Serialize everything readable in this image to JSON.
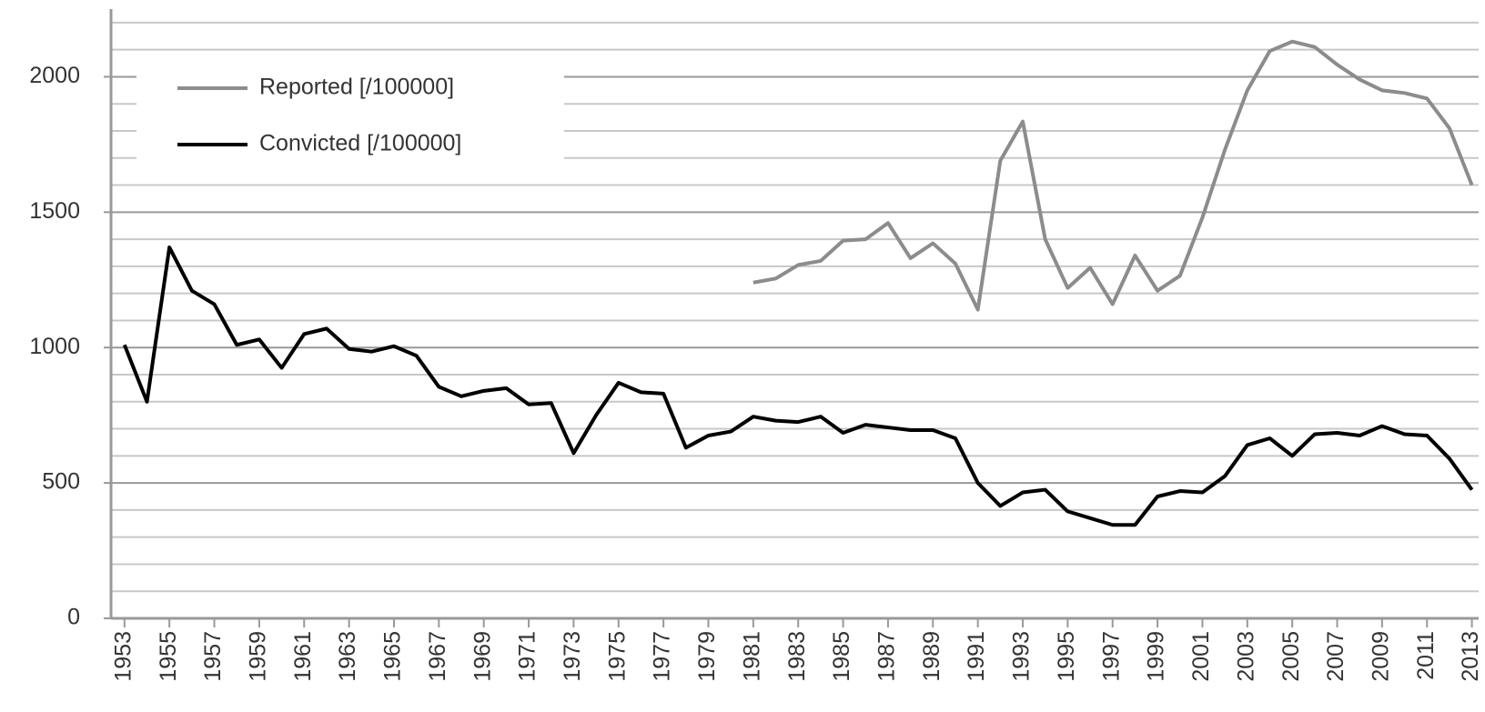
{
  "chart_data": {
    "type": "line",
    "x": [
      1953,
      1954,
      1955,
      1956,
      1957,
      1958,
      1959,
      1960,
      1961,
      1962,
      1963,
      1964,
      1965,
      1966,
      1967,
      1968,
      1969,
      1970,
      1971,
      1972,
      1973,
      1974,
      1975,
      1976,
      1977,
      1978,
      1979,
      1980,
      1981,
      1982,
      1983,
      1984,
      1985,
      1986,
      1987,
      1988,
      1989,
      1990,
      1991,
      1992,
      1993,
      1994,
      1995,
      1996,
      1997,
      1998,
      1999,
      2000,
      2001,
      2002,
      2003,
      2004,
      2005,
      2006,
      2007,
      2008,
      2009,
      2010,
      2011,
      2012,
      2013
    ],
    "xlim": [
      1952.4,
      2013.3
    ],
    "xticks": [
      1953,
      1955,
      1957,
      1959,
      1961,
      1963,
      1965,
      1967,
      1969,
      1971,
      1973,
      1975,
      1977,
      1979,
      1981,
      1983,
      1985,
      1987,
      1989,
      1991,
      1993,
      1995,
      1997,
      1999,
      2001,
      2003,
      2005,
      2007,
      2009,
      2011,
      2013
    ],
    "ylim": [
      0,
      2250
    ],
    "yticks": [
      0,
      500,
      1000,
      1500,
      2000
    ],
    "yticks_minor": [
      100,
      200,
      300,
      400,
      600,
      700,
      800,
      900,
      1100,
      1200,
      1300,
      1400,
      1600,
      1700,
      1800,
      1900,
      2100,
      2200
    ],
    "grid": true,
    "legend": "upper left",
    "series": [
      {
        "name": "Reported [/100000]",
        "color": "#8c8c8c",
        "values": [
          null,
          null,
          null,
          null,
          null,
          null,
          null,
          null,
          null,
          null,
          null,
          null,
          null,
          null,
          null,
          null,
          null,
          null,
          null,
          null,
          null,
          null,
          null,
          null,
          null,
          null,
          null,
          null,
          1240,
          1255,
          1305,
          1320,
          1395,
          1400,
          1460,
          1330,
          1385,
          1310,
          1140,
          1690,
          1835,
          1400,
          1220,
          1295,
          1160,
          1340,
          1210,
          1265,
          1480,
          1730,
          1950,
          2095,
          2130,
          2110,
          2045,
          1990,
          1950,
          1940,
          1920,
          1810,
          1600
        ]
      },
      {
        "name": "Convicted [/100000]",
        "color": "#000000",
        "values": [
          1010,
          800,
          1370,
          1210,
          1160,
          1010,
          1030,
          925,
          1050,
          1070,
          995,
          985,
          1005,
          970,
          855,
          820,
          840,
          850,
          790,
          795,
          610,
          750,
          870,
          835,
          830,
          630,
          675,
          690,
          745,
          730,
          725,
          745,
          685,
          715,
          705,
          695,
          695,
          665,
          500,
          415,
          465,
          475,
          395,
          370,
          345,
          345,
          450,
          470,
          465,
          525,
          640,
          665,
          600,
          680,
          685,
          675,
          710,
          680,
          675,
          590,
          475
        ]
      }
    ]
  }
}
